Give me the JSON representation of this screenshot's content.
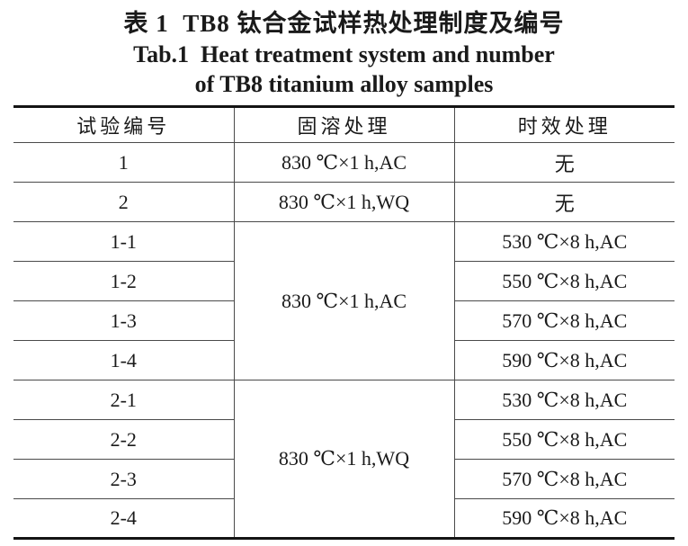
{
  "title": {
    "zh": "表 1  TB8 钛合金试样热处理制度及编号",
    "en_line1": "Tab.1  Heat treatment system and number",
    "en_line2": "of TB8 titanium alloy samples"
  },
  "table": {
    "headers": [
      "试验编号",
      "固溶处理",
      "时效处理"
    ],
    "simple_rows": [
      {
        "id": "1",
        "solution": "830 ℃×1 h,AC",
        "aging": "无"
      },
      {
        "id": "2",
        "solution": "830 ℃×1 h,WQ",
        "aging": "无"
      }
    ],
    "group1": {
      "solution": "830 ℃×1 h,AC",
      "rows": [
        {
          "id": "1-1",
          "aging": "530 ℃×8 h,AC"
        },
        {
          "id": "1-2",
          "aging": "550 ℃×8 h,AC"
        },
        {
          "id": "1-3",
          "aging": "570 ℃×8 h,AC"
        },
        {
          "id": "1-4",
          "aging": "590 ℃×8 h,AC"
        }
      ]
    },
    "group2": {
      "solution": "830 ℃×1 h,WQ",
      "rows": [
        {
          "id": "2-1",
          "aging": "530 ℃×8 h,AC"
        },
        {
          "id": "2-2",
          "aging": "550 ℃×8 h,AC"
        },
        {
          "id": "2-3",
          "aging": "570 ℃×8 h,AC"
        },
        {
          "id": "2-4",
          "aging": "590 ℃×8 h,AC"
        }
      ]
    }
  }
}
